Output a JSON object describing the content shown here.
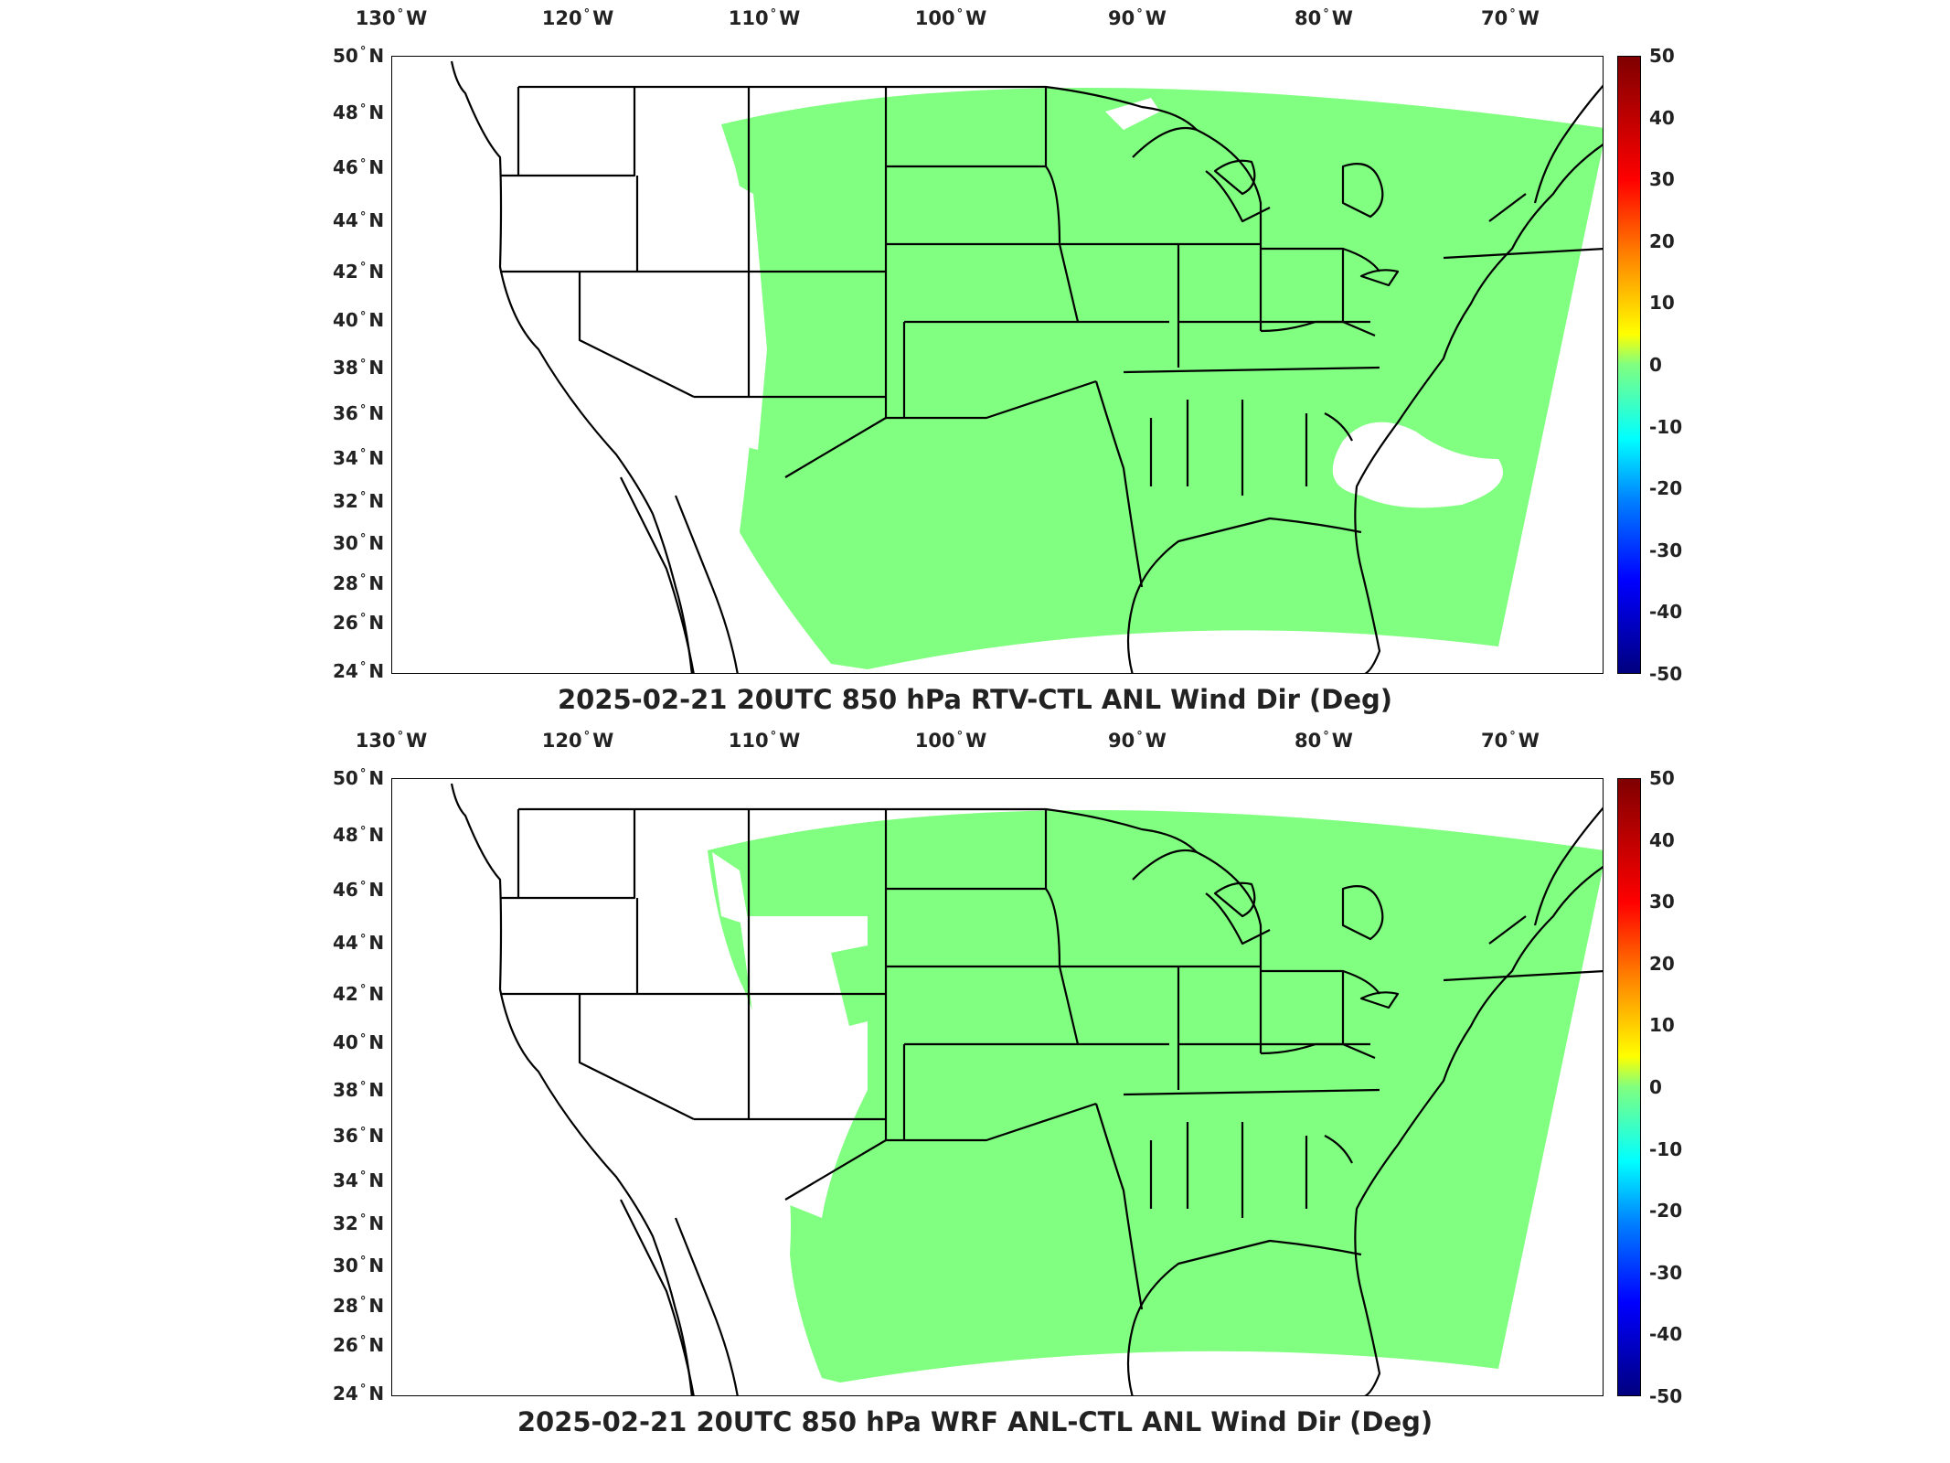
{
  "lon_ticks": [
    {
      "deg": "130",
      "dir": "W"
    },
    {
      "deg": "120",
      "dir": "W"
    },
    {
      "deg": "110",
      "dir": "W"
    },
    {
      "deg": "100",
      "dir": "W"
    },
    {
      "deg": "90",
      "dir": "W"
    },
    {
      "deg": "80",
      "dir": "W"
    },
    {
      "deg": "70",
      "dir": "W"
    }
  ],
  "lat_ticks": [
    {
      "deg": "50",
      "dir": "N"
    },
    {
      "deg": "48",
      "dir": "N"
    },
    {
      "deg": "46",
      "dir": "N"
    },
    {
      "deg": "44",
      "dir": "N"
    },
    {
      "deg": "42",
      "dir": "N"
    },
    {
      "deg": "40",
      "dir": "N"
    },
    {
      "deg": "38",
      "dir": "N"
    },
    {
      "deg": "36",
      "dir": "N"
    },
    {
      "deg": "34",
      "dir": "N"
    },
    {
      "deg": "32",
      "dir": "N"
    },
    {
      "deg": "30",
      "dir": "N"
    },
    {
      "deg": "28",
      "dir": "N"
    },
    {
      "deg": "26",
      "dir": "N"
    },
    {
      "deg": "24",
      "dir": "N"
    }
  ],
  "colorbar": {
    "ticks": [
      "50",
      "40",
      "30",
      "20",
      "10",
      "0",
      "-10",
      "-20",
      "-30",
      "-40",
      "-50"
    ],
    "range": [
      -50,
      50
    ]
  },
  "panels": [
    {
      "title": "2025-02-21 20UTC 850 hPa RTV-CTL ANL Wind Dir (Deg)",
      "field_color": "#80ff80"
    },
    {
      "title": "2025-02-21 20UTC 850 hPa WRF ANL-CTL ANL Wind Dir (Deg)",
      "field_color": "#80ff80"
    }
  ]
}
